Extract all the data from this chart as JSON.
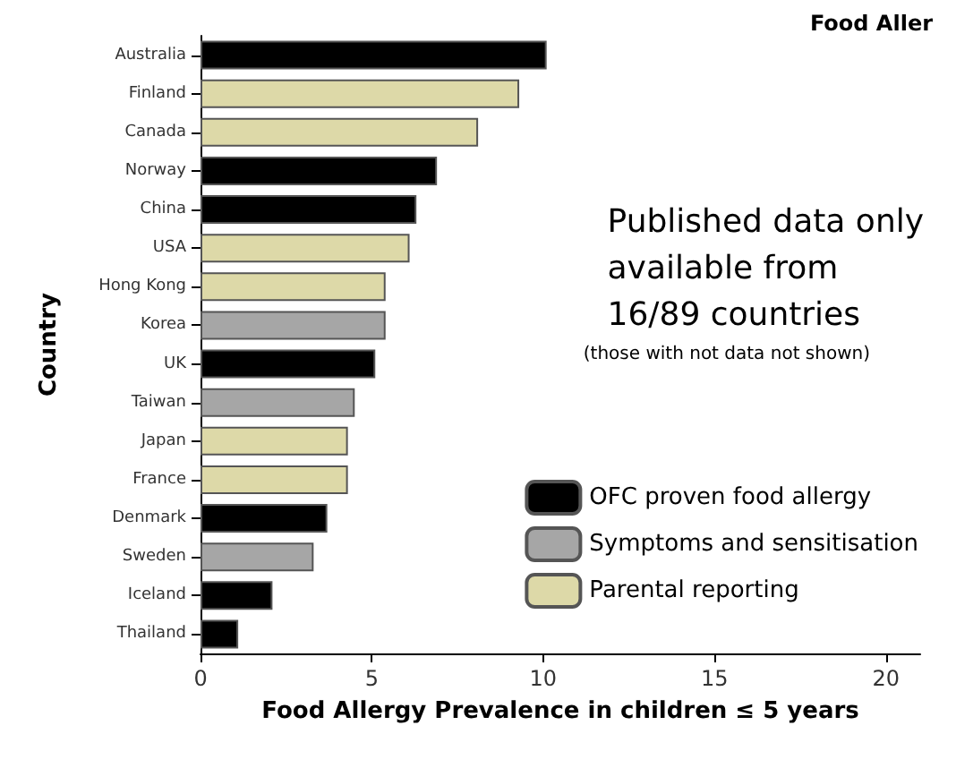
{
  "chart_data": {
    "type": "bar",
    "orientation": "horizontal",
    "title": "Food Aller",
    "xlabel": "Food Allergy Prevalence in children ≤ 5 years",
    "ylabel": "Country",
    "categories": [
      "Australia",
      "Finland",
      "Canada",
      "Norway",
      "China",
      "USA",
      "Hong Kong",
      "Korea",
      "UK",
      "Taiwan",
      "Japan",
      "France",
      "Denmark",
      "Sweden",
      "Iceland",
      "Thailand"
    ],
    "series": [
      {
        "name": "OFC proven food allergy",
        "color": "#000000",
        "values": [
          10.1,
          null,
          null,
          6.9,
          6.3,
          null,
          null,
          null,
          5.1,
          null,
          null,
          null,
          3.7,
          null,
          2.1,
          1.1
        ]
      },
      {
        "name": "Symptoms and sensitisation",
        "color": "#a6a6a6",
        "values": [
          null,
          null,
          null,
          null,
          null,
          null,
          null,
          5.4,
          null,
          4.5,
          null,
          null,
          null,
          3.3,
          null,
          null
        ]
      },
      {
        "name": "Parental reporting",
        "color": "#ddd9a8",
        "values": [
          null,
          9.3,
          8.1,
          null,
          null,
          6.1,
          5.4,
          null,
          null,
          null,
          4.3,
          4.3,
          null,
          null,
          null,
          null
        ]
      }
    ],
    "xlim": [
      0,
      21
    ],
    "xticks": [
      0,
      5,
      10,
      15,
      20
    ],
    "grid": false,
    "legend": "right",
    "annotations": [
      "Published data only available from 16/89 countries",
      "(those with not data not shown)"
    ]
  }
}
